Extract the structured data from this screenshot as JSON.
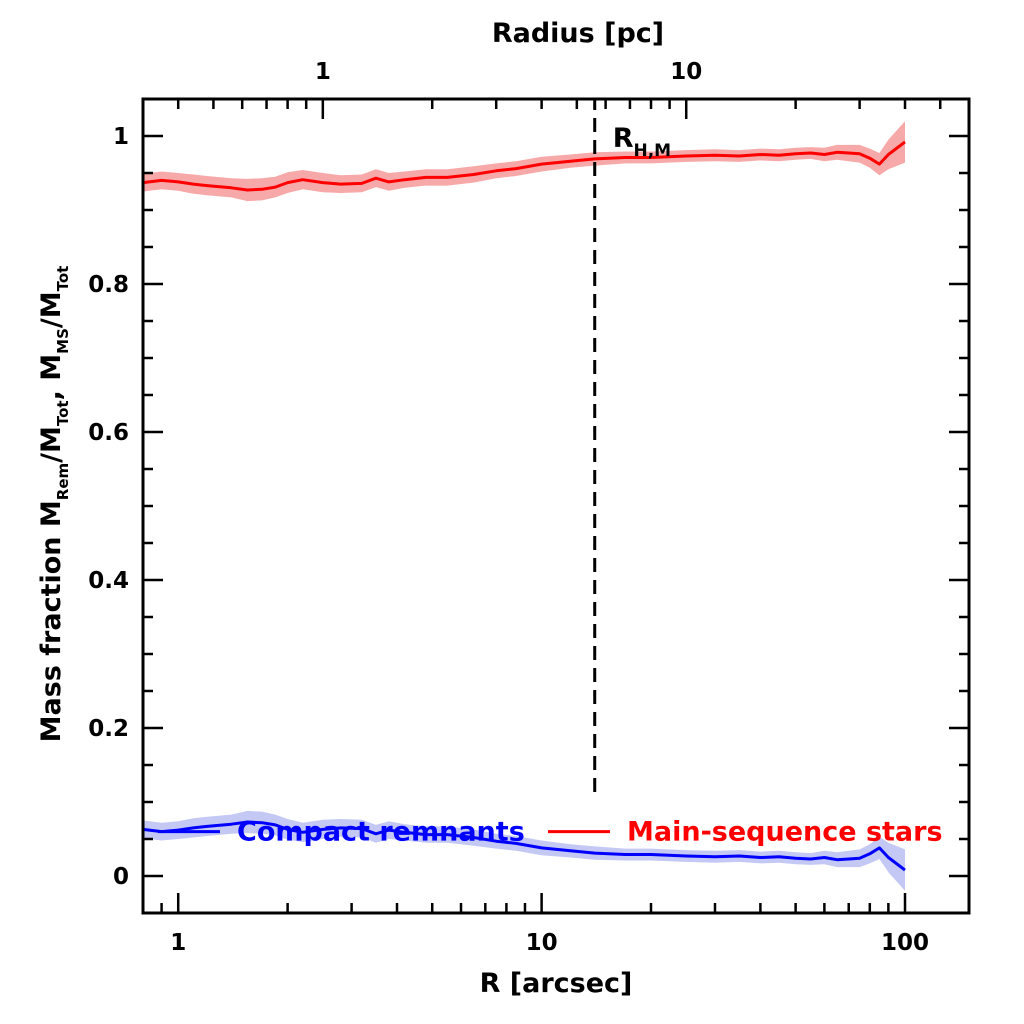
{
  "chart_data": {
    "type": "line",
    "x_scale": "log",
    "xlabel": "R [arcsec]",
    "xlabel_top": "Radius [pc]",
    "ylabel_parts": [
      "Mass fraction  M",
      "Rem",
      "/M",
      "Tot",
      ",  M",
      "MS",
      "/M",
      "Tot"
    ],
    "xlim": [
      0.8,
      150
    ],
    "ylim": [
      -0.05,
      1.05
    ],
    "x_ticks": [
      1,
      10,
      100
    ],
    "x_tick_labels": [
      "1",
      "10",
      "100"
    ],
    "top_x_ticks_arcsec": [
      2.5,
      25
    ],
    "top_x_tick_labels": [
      "1",
      "10"
    ],
    "y_ticks": [
      0,
      0.2,
      0.4,
      0.6,
      0.8,
      1
    ],
    "y_tick_labels": [
      "0",
      "0.2",
      "0.4",
      "0.6",
      "0.8",
      "1"
    ],
    "vline": {
      "x": 14,
      "y_range": [
        0.1,
        1.05
      ],
      "label_main": "R",
      "label_sub": "H,M"
    },
    "series": [
      {
        "name": "Main-sequence stars",
        "color": "#ff0000",
        "band_color": "#f7a8a8",
        "x": [
          0.8,
          0.9,
          1.0,
          1.1,
          1.2,
          1.4,
          1.55,
          1.7,
          1.85,
          2.0,
          2.2,
          2.5,
          2.8,
          3.2,
          3.5,
          3.8,
          4.2,
          4.8,
          5.5,
          6.5,
          7.5,
          8.5,
          10,
          12,
          14,
          17,
          20,
          25,
          30,
          35,
          40,
          45,
          50,
          55,
          60,
          65,
          70,
          75,
          80,
          85,
          90,
          100
        ],
        "y": [
          0.937,
          0.94,
          0.938,
          0.935,
          0.933,
          0.93,
          0.927,
          0.928,
          0.931,
          0.937,
          0.941,
          0.937,
          0.935,
          0.936,
          0.943,
          0.938,
          0.941,
          0.944,
          0.944,
          0.948,
          0.953,
          0.956,
          0.962,
          0.966,
          0.969,
          0.971,
          0.971,
          0.973,
          0.974,
          0.973,
          0.975,
          0.974,
          0.976,
          0.977,
          0.975,
          0.978,
          0.977,
          0.976,
          0.97,
          0.962,
          0.975,
          0.992
        ],
        "band_halfwidth": [
          0.012,
          0.012,
          0.012,
          0.013,
          0.013,
          0.013,
          0.015,
          0.015,
          0.014,
          0.014,
          0.013,
          0.013,
          0.012,
          0.012,
          0.012,
          0.012,
          0.011,
          0.011,
          0.011,
          0.011,
          0.01,
          0.01,
          0.01,
          0.009,
          0.009,
          0.008,
          0.008,
          0.008,
          0.008,
          0.008,
          0.008,
          0.008,
          0.008,
          0.008,
          0.009,
          0.01,
          0.011,
          0.012,
          0.013,
          0.015,
          0.02,
          0.028
        ]
      },
      {
        "name": "Compact remnants",
        "color": "#0000ff",
        "band_color": "#c4c8f4",
        "x": [
          0.8,
          0.9,
          1.0,
          1.1,
          1.2,
          1.4,
          1.55,
          1.7,
          1.85,
          2.0,
          2.2,
          2.5,
          2.8,
          3.2,
          3.5,
          3.8,
          4.2,
          4.8,
          5.5,
          6.5,
          7.5,
          8.5,
          10,
          12,
          14,
          17,
          20,
          25,
          30,
          35,
          40,
          45,
          50,
          55,
          60,
          65,
          70,
          75,
          80,
          85,
          90,
          100
        ],
        "y": [
          0.063,
          0.06,
          0.062,
          0.065,
          0.067,
          0.07,
          0.073,
          0.072,
          0.069,
          0.063,
          0.059,
          0.063,
          0.065,
          0.064,
          0.057,
          0.062,
          0.059,
          0.056,
          0.056,
          0.052,
          0.047,
          0.044,
          0.038,
          0.034,
          0.031,
          0.029,
          0.029,
          0.027,
          0.026,
          0.027,
          0.025,
          0.026,
          0.024,
          0.023,
          0.025,
          0.022,
          0.023,
          0.024,
          0.03,
          0.038,
          0.025,
          0.008
        ],
        "band_halfwidth": [
          0.012,
          0.012,
          0.012,
          0.013,
          0.013,
          0.013,
          0.015,
          0.015,
          0.014,
          0.014,
          0.013,
          0.013,
          0.012,
          0.012,
          0.012,
          0.012,
          0.011,
          0.011,
          0.011,
          0.011,
          0.01,
          0.01,
          0.01,
          0.009,
          0.009,
          0.008,
          0.008,
          0.008,
          0.008,
          0.008,
          0.008,
          0.008,
          0.008,
          0.008,
          0.009,
          0.01,
          0.011,
          0.012,
          0.013,
          0.015,
          0.02,
          0.028
        ]
      }
    ],
    "legend": [
      {
        "label": "Compact remnants",
        "color": "#0000ff",
        "position": "bottom-left"
      },
      {
        "label": "Main-sequence stars",
        "color": "#ff0000",
        "position": "bottom-right"
      }
    ]
  }
}
